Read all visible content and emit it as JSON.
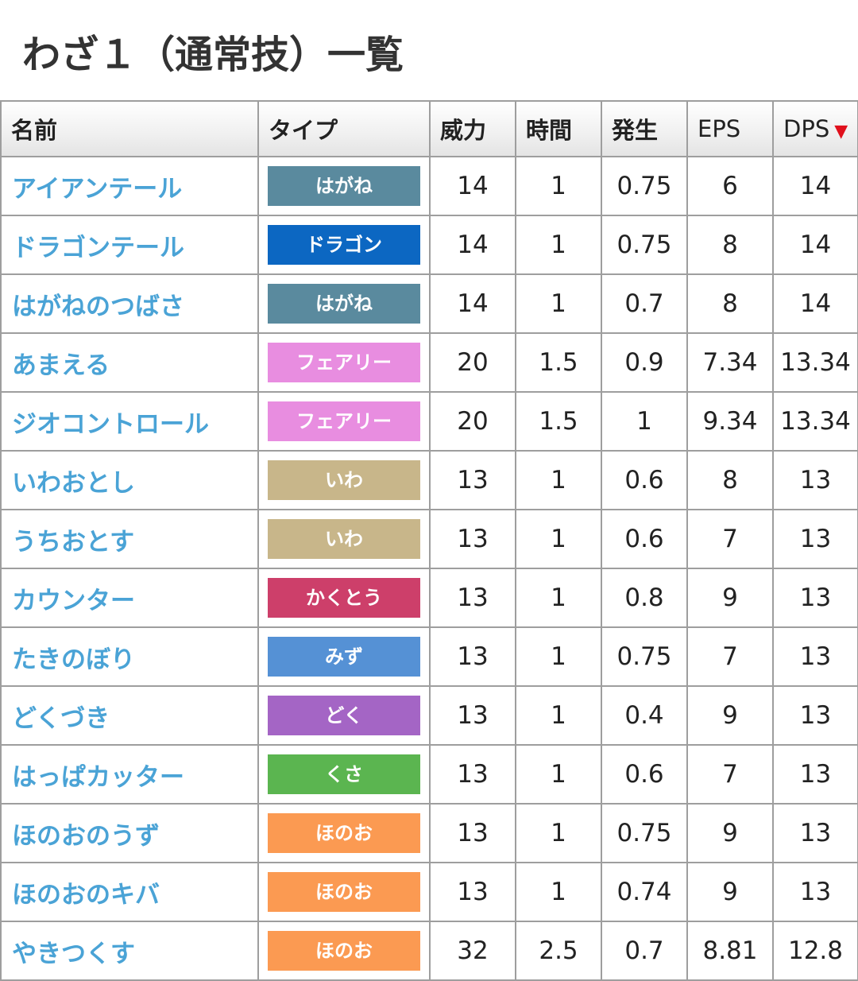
{
  "page": {
    "title": "わざ１（通常技）一覧"
  },
  "table": {
    "headers": {
      "name": "名前",
      "type": "タイプ",
      "power": "威力",
      "time": "時間",
      "start": "発生",
      "eps": "EPS",
      "dps": "DPS",
      "sort_indicator": "▼"
    },
    "type_colors": {
      "はがね": "#5a8a9e",
      "ドラゴン": "#0c67c2",
      "フェアリー": "#e88de0",
      "いわ": "#c8b68a",
      "かくとう": "#cd3f6a",
      "みず": "#5591d5",
      "どく": "#a465c5",
      "くさ": "#5bb550",
      "ほのお": "#fb9a52"
    },
    "rows": [
      {
        "name": "アイアンテール",
        "type": "はがね",
        "power": "14",
        "time": "1",
        "start": "0.75",
        "eps": "6",
        "dps": "14"
      },
      {
        "name": "ドラゴンテール",
        "type": "ドラゴン",
        "power": "14",
        "time": "1",
        "start": "0.75",
        "eps": "8",
        "dps": "14"
      },
      {
        "name": "はがねのつばさ",
        "type": "はがね",
        "power": "14",
        "time": "1",
        "start": "0.7",
        "eps": "8",
        "dps": "14"
      },
      {
        "name": "あまえる",
        "type": "フェアリー",
        "power": "20",
        "time": "1.5",
        "start": "0.9",
        "eps": "7.34",
        "dps": "13.34"
      },
      {
        "name": "ジオコントロール",
        "type": "フェアリー",
        "power": "20",
        "time": "1.5",
        "start": "1",
        "eps": "9.34",
        "dps": "13.34"
      },
      {
        "name": "いわおとし",
        "type": "いわ",
        "power": "13",
        "time": "1",
        "start": "0.6",
        "eps": "8",
        "dps": "13"
      },
      {
        "name": "うちおとす",
        "type": "いわ",
        "power": "13",
        "time": "1",
        "start": "0.6",
        "eps": "7",
        "dps": "13"
      },
      {
        "name": "カウンター",
        "type": "かくとう",
        "power": "13",
        "time": "1",
        "start": "0.8",
        "eps": "9",
        "dps": "13"
      },
      {
        "name": "たきのぼり",
        "type": "みず",
        "power": "13",
        "time": "1",
        "start": "0.75",
        "eps": "7",
        "dps": "13"
      },
      {
        "name": "どくづき",
        "type": "どく",
        "power": "13",
        "time": "1",
        "start": "0.4",
        "eps": "9",
        "dps": "13"
      },
      {
        "name": "はっぱカッター",
        "type": "くさ",
        "power": "13",
        "time": "1",
        "start": "0.6",
        "eps": "7",
        "dps": "13"
      },
      {
        "name": "ほのおのうず",
        "type": "ほのお",
        "power": "13",
        "time": "1",
        "start": "0.75",
        "eps": "9",
        "dps": "13"
      },
      {
        "name": "ほのおのキバ",
        "type": "ほのお",
        "power": "13",
        "time": "1",
        "start": "0.74",
        "eps": "9",
        "dps": "13"
      },
      {
        "name": "やきつくす",
        "type": "ほのお",
        "power": "32",
        "time": "2.5",
        "start": "0.7",
        "eps": "8.81",
        "dps": "12.8"
      }
    ]
  }
}
